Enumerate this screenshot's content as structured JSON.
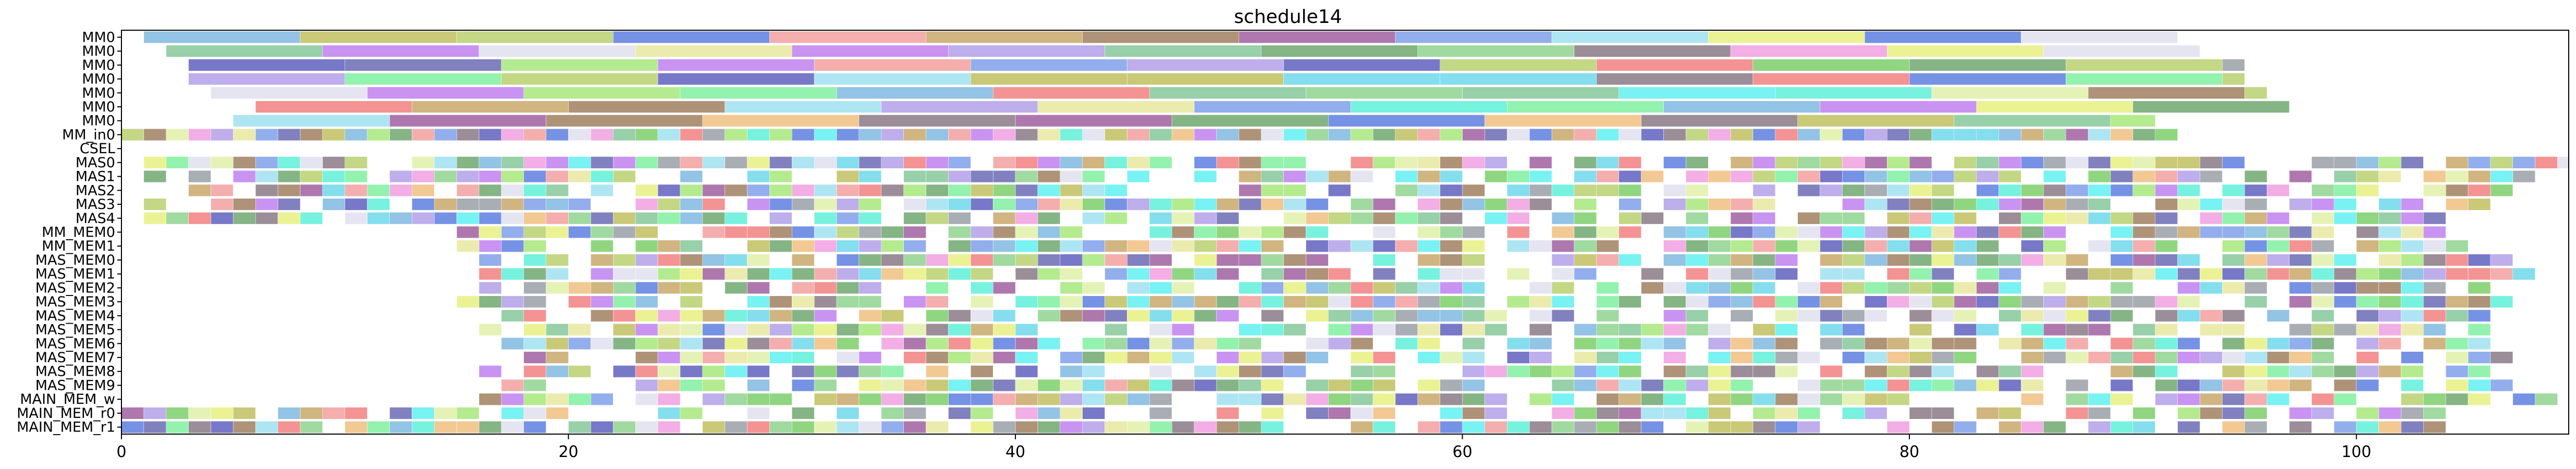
{
  "chart_data": {
    "type": "gantt",
    "title": "schedule14",
    "xlabel": "",
    "ylabel": "",
    "xlim": [
      0,
      109.5
    ],
    "xticks": [
      0,
      20,
      40,
      60,
      80,
      100
    ],
    "rows": [
      "MM0",
      "MM0",
      "MM0",
      "MM0",
      "MM0",
      "MM0",
      "MM0",
      "MM_in0",
      "CSEL",
      "MAS0",
      "MAS1",
      "MAS2",
      "MAS3",
      "MAS4",
      "MM_MEM0",
      "MM_MEM1",
      "MAS_MEM0",
      "MAS_MEM1",
      "MAS_MEM2",
      "MAS_MEM3",
      "MAS_MEM4",
      "MAS_MEM5",
      "MAS_MEM6",
      "MAS_MEM7",
      "MAS_MEM8",
      "MAS_MEM9",
      "MAIN_MEM_w",
      "MAIN_MEM_r0",
      "MAIN_MEM_r1"
    ],
    "spans": [
      {
        "row": 0,
        "start": 1.0,
        "end": 92.0,
        "block": 7.0
      },
      {
        "row": 1,
        "start": 2.0,
        "end": 93.0,
        "block": 7.0
      },
      {
        "row": 2,
        "start": 3.0,
        "end": 95.0,
        "block": 7.0
      },
      {
        "row": 3,
        "start": 3.0,
        "end": 95.0,
        "block": 7.0
      },
      {
        "row": 4,
        "start": 4.0,
        "end": 96.0,
        "block": 7.0
      },
      {
        "row": 5,
        "start": 6.0,
        "end": 97.0,
        "block": 7.0
      },
      {
        "row": 6,
        "start": 5.0,
        "end": 91.0,
        "block": 7.0
      },
      {
        "row": 7,
        "start": 0.0,
        "end": 92.0,
        "block": 1.0
      },
      {
        "row": 9,
        "start": 1.0,
        "end": 109.5,
        "block": 1.0
      },
      {
        "row": 10,
        "start": 1.0,
        "end": 108.0,
        "block": 1.0
      },
      {
        "row": 11,
        "start": 1.0,
        "end": 107.0,
        "block": 1.0
      },
      {
        "row": 12,
        "start": 1.0,
        "end": 106.0,
        "block": 1.0
      },
      {
        "row": 13,
        "start": 1.0,
        "end": 106.0,
        "block": 1.0
      },
      {
        "row": 14,
        "start": 15.0,
        "end": 106.0,
        "block": 1.0
      },
      {
        "row": 15,
        "start": 15.0,
        "end": 106.0,
        "block": 1.0
      },
      {
        "row": 16,
        "start": 16.0,
        "end": 107.0,
        "block": 1.0
      },
      {
        "row": 17,
        "start": 16.0,
        "end": 108.0,
        "block": 1.0
      },
      {
        "row": 18,
        "start": 16.0,
        "end": 108.0,
        "block": 1.0
      },
      {
        "row": 19,
        "start": 15.0,
        "end": 107.0,
        "block": 1.0
      },
      {
        "row": 20,
        "start": 16.0,
        "end": 106.0,
        "block": 1.0
      },
      {
        "row": 21,
        "start": 16.0,
        "end": 106.0,
        "block": 1.0
      },
      {
        "row": 22,
        "start": 17.0,
        "end": 107.0,
        "block": 1.0
      },
      {
        "row": 23,
        "start": 18.0,
        "end": 107.0,
        "block": 1.0
      },
      {
        "row": 24,
        "start": 15.0,
        "end": 106.0,
        "block": 1.0
      },
      {
        "row": 25,
        "start": 17.0,
        "end": 107.0,
        "block": 1.0
      },
      {
        "row": 26,
        "start": 16.0,
        "end": 109.0,
        "block": 1.0
      },
      {
        "row": 27,
        "start": 0.0,
        "end": 104.0,
        "block": 1.0
      },
      {
        "row": 28,
        "start": 0.0,
        "end": 104.0,
        "block": 1.0
      }
    ],
    "palette": [
      "#8fd48f",
      "#6b6bb5",
      "#7ccf6a",
      "#7fa0ea",
      "#6fd8ea",
      "#a7e87a",
      "#86c89a",
      "#5e7fe0",
      "#e0f0a8",
      "#c9a86a",
      "#5ef0d8",
      "#9aa0a8",
      "#8a7a86",
      "#b3a0e8",
      "#e8e8a0",
      "#f28080",
      "#80b8e0",
      "#b8d070",
      "#6060c0",
      "#f2a0a0",
      "#e8f080",
      "#80f0a0",
      "#c080f0",
      "#a0e0f0",
      "#f0c080",
      "#70a870",
      "#e0e0f0",
      "#f0a0e0",
      "#a08060",
      "#60f0f0",
      "#c0c060",
      "#a060a0"
    ],
    "gaps_seed": 14,
    "grid": false,
    "legend": "none"
  }
}
